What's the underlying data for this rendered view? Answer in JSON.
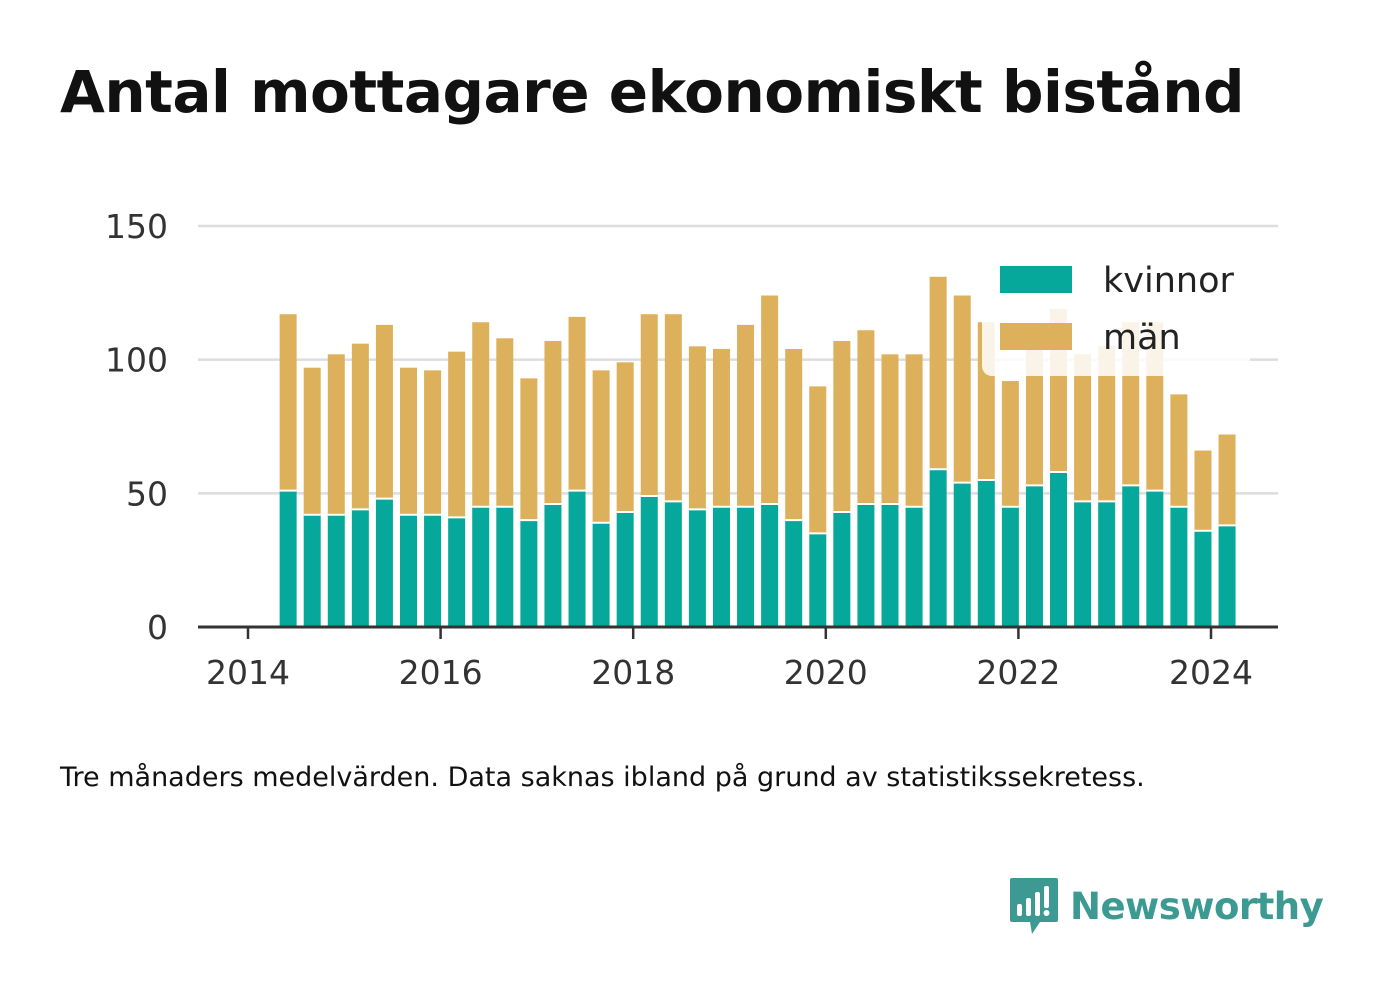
{
  "chart_data": {
    "type": "bar",
    "stacked": true,
    "title": "Antal mottagare ekonomiskt bistånd",
    "footnote": "Tre månaders medelvärden. Data saknas ibland på grund av statistikssekretess.",
    "x": [
      "2014-06",
      "2014-09",
      "2014-12",
      "2015-03",
      "2015-06",
      "2015-09",
      "2015-12",
      "2016-03",
      "2016-06",
      "2016-09",
      "2016-12",
      "2017-03",
      "2017-06",
      "2017-09",
      "2017-12",
      "2018-03",
      "2018-06",
      "2018-09",
      "2018-12",
      "2019-03",
      "2019-06",
      "2019-09",
      "2019-12",
      "2020-03",
      "2020-06",
      "2020-09",
      "2020-12",
      "2021-03",
      "2021-06",
      "2021-09",
      "2021-12",
      "2022-03",
      "2022-06",
      "2022-09",
      "2022-12",
      "2023-03",
      "2023-06",
      "2023-09",
      "2023-12",
      "2024-03"
    ],
    "series": [
      {
        "name": "kvinnor",
        "color": "#05a89a",
        "values": [
          51,
          42,
          42,
          44,
          48,
          42,
          42,
          41,
          45,
          45,
          40,
          46,
          51,
          39,
          43,
          49,
          47,
          44,
          45,
          45,
          46,
          40,
          35,
          43,
          46,
          46,
          45,
          59,
          54,
          55,
          45,
          53,
          58,
          47,
          47,
          53,
          51,
          45,
          36,
          38
        ]
      },
      {
        "name": "män",
        "color": "#ddb05c",
        "values": [
          66,
          55,
          60,
          62,
          65,
          55,
          54,
          62,
          69,
          63,
          53,
          61,
          65,
          57,
          56,
          68,
          70,
          61,
          59,
          68,
          78,
          64,
          55,
          64,
          65,
          56,
          57,
          72,
          70,
          59,
          47,
          52,
          61,
          55,
          58,
          61,
          63,
          42,
          30,
          34
        ]
      }
    ],
    "xticks": [
      "2014",
      "2016",
      "2018",
      "2020",
      "2022",
      "2024"
    ],
    "yticks": [
      0,
      50,
      100,
      150
    ],
    "ylim": [
      0,
      150
    ],
    "grid": true,
    "legend": "top-right"
  },
  "brand": {
    "name": "Newsworthy",
    "icon": "bar-chart-speech-bubble-icon",
    "color": "#3d9a93"
  },
  "colors": {
    "grid": "#dddddd",
    "axis": "#333333",
    "text": "#111111"
  }
}
